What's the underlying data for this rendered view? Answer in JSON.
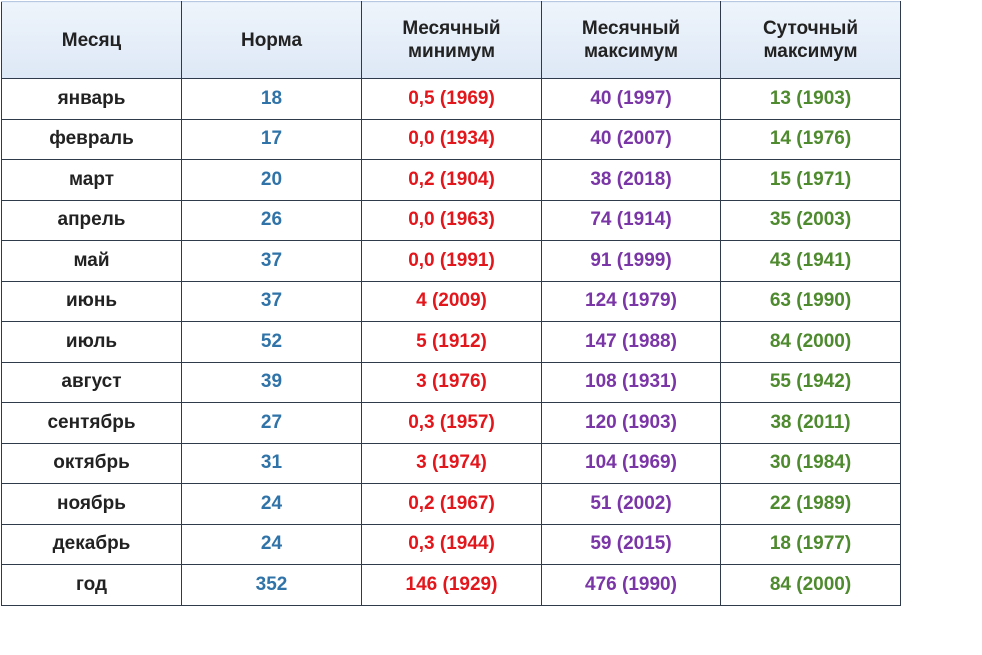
{
  "colors": {
    "header_bg": "#dde8f6",
    "month_text": "#222222",
    "norm_text": "#2f73a8",
    "monthly_min_text": "#e3161c",
    "monthly_max_text": "#7a35a6",
    "daily_max_text": "#4e8a2e",
    "grid_lines": "#2f3a4a"
  },
  "table": {
    "headers": {
      "month": "Месяц",
      "norm": "Норма",
      "monthly_min_1": "Месячный",
      "monthly_min_2": "минимум",
      "monthly_max_1": "Месячный",
      "monthly_max_2": "максимум",
      "daily_max_1": "Суточный",
      "daily_max_2": "максимум"
    },
    "rows": [
      {
        "month": "январь",
        "norm": "18",
        "monthly_min": "0,5 (1969)",
        "monthly_max": "40 (1997)",
        "daily_max": "13 (1903)"
      },
      {
        "month": "февраль",
        "norm": "17",
        "monthly_min": "0,0 (1934)",
        "monthly_max": "40 (2007)",
        "daily_max": "14 (1976)"
      },
      {
        "month": "март",
        "norm": "20",
        "monthly_min": "0,2 (1904)",
        "monthly_max": "38 (2018)",
        "daily_max": "15 (1971)"
      },
      {
        "month": "апрель",
        "norm": "26",
        "monthly_min": "0,0 (1963)",
        "monthly_max": "74 (1914)",
        "daily_max": "35 (2003)"
      },
      {
        "month": "май",
        "norm": "37",
        "monthly_min": "0,0 (1991)",
        "monthly_max": "91 (1999)",
        "daily_max": "43 (1941)"
      },
      {
        "month": "июнь",
        "norm": "37",
        "monthly_min": "4 (2009)",
        "monthly_max": "124 (1979)",
        "daily_max": "63 (1990)"
      },
      {
        "month": "июль",
        "norm": "52",
        "monthly_min": "5 (1912)",
        "monthly_max": "147 (1988)",
        "daily_max": "84 (2000)"
      },
      {
        "month": "август",
        "norm": "39",
        "monthly_min": "3 (1976)",
        "monthly_max": "108 (1931)",
        "daily_max": "55 (1942)"
      },
      {
        "month": "сентябрь",
        "norm": "27",
        "monthly_min": "0,3 (1957)",
        "monthly_max": "120 (1903)",
        "daily_max": "38 (2011)"
      },
      {
        "month": "октябрь",
        "norm": "31",
        "monthly_min": "3 (1974)",
        "monthly_max": "104 (1969)",
        "daily_max": "30 (1984)"
      },
      {
        "month": "ноябрь",
        "norm": "24",
        "monthly_min": "0,2 (1967)",
        "monthly_max": "51 (2002)",
        "daily_max": "22 (1989)"
      },
      {
        "month": "декабрь",
        "norm": "24",
        "monthly_min": "0,3 (1944)",
        "monthly_max": "59 (2015)",
        "daily_max": "18 (1977)"
      },
      {
        "month": "год",
        "norm": "352",
        "monthly_min": "146 (1929)",
        "monthly_max": "476 (1990)",
        "daily_max": "84 (2000)"
      }
    ]
  }
}
